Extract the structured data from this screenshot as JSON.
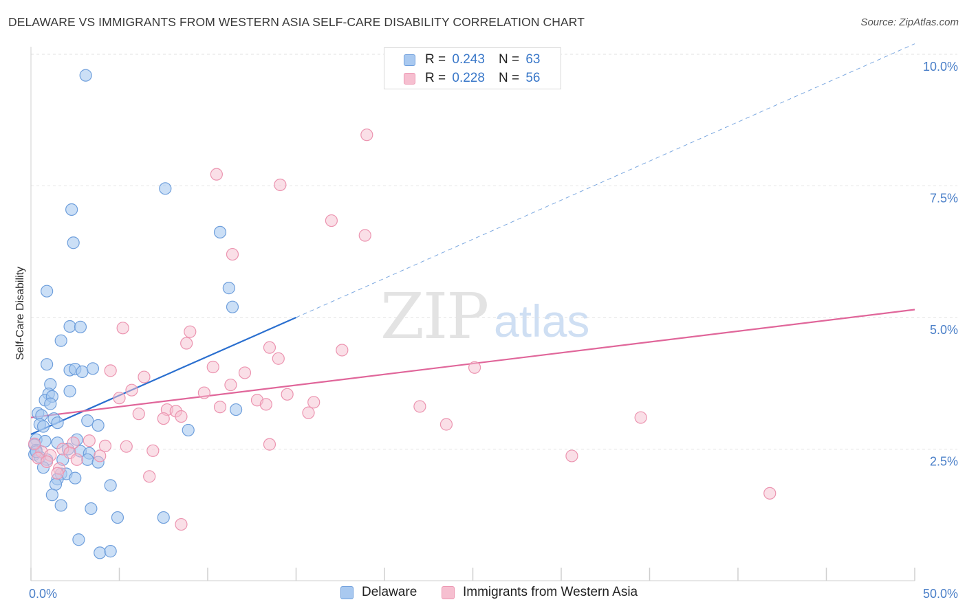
{
  "title": "DELAWARE VS IMMIGRANTS FROM WESTERN ASIA SELF-CARE DISABILITY CORRELATION CHART",
  "source": "Source: ZipAtlas.com",
  "watermark": {
    "zip": "ZIP",
    "atlas": "atlas"
  },
  "legend": {
    "r_label": "R =",
    "n_label": "N =",
    "entries": [
      {
        "r": "0.243",
        "n": "63"
      },
      {
        "r": "0.228",
        "n": "56"
      }
    ]
  },
  "colors": {
    "delaware_fill": "#a9c9f0",
    "delaware_stroke": "#6f9fdc",
    "delaware_line": "#2a6fcf",
    "immigrants_fill": "#f6bfd0",
    "immigrants_stroke": "#ec94b0",
    "immigrants_line": "#e0669a",
    "axis_label": "#4a7fc8"
  },
  "chart_data": {
    "type": "scatter",
    "title": "DELAWARE VS IMMIGRANTS FROM WESTERN ASIA SELF-CARE DISABILITY CORRELATION CHART",
    "xlabel": "",
    "ylabel": "Self-Care Disability",
    "xlim": [
      0,
      50
    ],
    "ylim": [
      0,
      10.5
    ],
    "x_tick_labels": [
      "0.0%",
      "50.0%"
    ],
    "y_ticks": [
      2.5,
      5.0,
      7.5,
      10.0
    ],
    "y_tick_labels": [
      "2.5%",
      "5.0%",
      "7.5%",
      "10.0%"
    ],
    "legend_position": "top-center",
    "series": [
      {
        "name": "Delaware",
        "r": 0.243,
        "n": 63,
        "trend": {
          "x0": 0,
          "y0": 2.78,
          "x1": 15,
          "y1": 5.0,
          "dashed_to_x": 50,
          "dashed_to_y": 10.2
        },
        "points": [
          [
            3.1,
            9.6
          ],
          [
            7.6,
            7.45
          ],
          [
            2.3,
            7.05
          ],
          [
            2.4,
            6.42
          ],
          [
            10.7,
            6.62
          ],
          [
            11.2,
            5.56
          ],
          [
            11.4,
            5.2
          ],
          [
            0.9,
            5.5
          ],
          [
            2.2,
            4.83
          ],
          [
            2.8,
            4.82
          ],
          [
            1.7,
            4.56
          ],
          [
            0.9,
            4.11
          ],
          [
            2.2,
            4.0
          ],
          [
            2.5,
            4.02
          ],
          [
            2.9,
            3.97
          ],
          [
            3.5,
            4.03
          ],
          [
            1.1,
            3.73
          ],
          [
            1.0,
            3.55
          ],
          [
            2.2,
            3.6
          ],
          [
            0.8,
            3.43
          ],
          [
            1.2,
            3.5
          ],
          [
            1.1,
            3.36
          ],
          [
            0.4,
            3.18
          ],
          [
            0.6,
            3.14
          ],
          [
            1.3,
            3.08
          ],
          [
            3.2,
            3.04
          ],
          [
            0.5,
            2.97
          ],
          [
            0.7,
            2.93
          ],
          [
            1.5,
            3.0
          ],
          [
            3.8,
            2.95
          ],
          [
            11.6,
            3.25
          ],
          [
            8.9,
            2.86
          ],
          [
            0.3,
            2.68
          ],
          [
            0.8,
            2.65
          ],
          [
            1.5,
            2.62
          ],
          [
            2.6,
            2.68
          ],
          [
            0.2,
            2.58
          ],
          [
            0.3,
            2.48
          ],
          [
            2.1,
            2.5
          ],
          [
            2.8,
            2.46
          ],
          [
            3.3,
            2.42
          ],
          [
            0.2,
            2.4
          ],
          [
            0.5,
            2.35
          ],
          [
            0.9,
            2.3
          ],
          [
            1.8,
            2.3
          ],
          [
            3.2,
            2.3
          ],
          [
            3.8,
            2.25
          ],
          [
            0.7,
            2.15
          ],
          [
            1.7,
            2.03
          ],
          [
            2.0,
            2.03
          ],
          [
            1.5,
            1.93
          ],
          [
            2.5,
            1.95
          ],
          [
            1.4,
            1.83
          ],
          [
            4.5,
            1.81
          ],
          [
            1.2,
            1.63
          ],
          [
            1.7,
            1.43
          ],
          [
            3.4,
            1.37
          ],
          [
            4.9,
            1.2
          ],
          [
            7.5,
            1.2
          ],
          [
            2.7,
            0.78
          ],
          [
            3.9,
            0.53
          ],
          [
            4.5,
            0.56
          ],
          [
            0.3,
            2.45
          ]
        ]
      },
      {
        "name": "Immigrants from Western Asia",
        "r": 0.228,
        "n": 56,
        "trend": {
          "x0": 0,
          "y0": 3.1,
          "x1": 50,
          "y1": 5.15
        },
        "points": [
          [
            19.0,
            8.47
          ],
          [
            10.5,
            7.72
          ],
          [
            14.1,
            7.52
          ],
          [
            17.0,
            6.84
          ],
          [
            18.9,
            6.56
          ],
          [
            11.4,
            6.2
          ],
          [
            5.2,
            4.8
          ],
          [
            9.0,
            4.73
          ],
          [
            8.8,
            4.51
          ],
          [
            13.5,
            4.43
          ],
          [
            17.6,
            4.38
          ],
          [
            14.0,
            4.22
          ],
          [
            10.3,
            4.06
          ],
          [
            4.5,
            3.99
          ],
          [
            12.1,
            3.95
          ],
          [
            25.1,
            4.05
          ],
          [
            6.4,
            3.87
          ],
          [
            11.3,
            3.72
          ],
          [
            5.7,
            3.62
          ],
          [
            9.8,
            3.57
          ],
          [
            14.5,
            3.54
          ],
          [
            5.0,
            3.47
          ],
          [
            12.8,
            3.43
          ],
          [
            16.0,
            3.39
          ],
          [
            13.3,
            3.35
          ],
          [
            10.7,
            3.3
          ],
          [
            22.0,
            3.31
          ],
          [
            7.7,
            3.25
          ],
          [
            8.2,
            3.22
          ],
          [
            15.7,
            3.19
          ],
          [
            6.1,
            3.17
          ],
          [
            8.5,
            3.12
          ],
          [
            7.5,
            3.08
          ],
          [
            34.5,
            3.1
          ],
          [
            23.5,
            2.97
          ],
          [
            3.3,
            2.66
          ],
          [
            2.4,
            2.62
          ],
          [
            13.5,
            2.59
          ],
          [
            5.4,
            2.55
          ],
          [
            4.2,
            2.56
          ],
          [
            6.9,
            2.47
          ],
          [
            1.8,
            2.5
          ],
          [
            2.2,
            2.43
          ],
          [
            3.9,
            2.37
          ],
          [
            30.6,
            2.37
          ],
          [
            0.6,
            2.45
          ],
          [
            1.1,
            2.38
          ],
          [
            0.4,
            2.33
          ],
          [
            2.6,
            2.3
          ],
          [
            0.9,
            2.26
          ],
          [
            1.6,
            2.13
          ],
          [
            1.5,
            2.04
          ],
          [
            6.7,
            1.98
          ],
          [
            41.8,
            1.66
          ],
          [
            8.5,
            1.07
          ],
          [
            0.2,
            2.6
          ]
        ]
      }
    ]
  }
}
